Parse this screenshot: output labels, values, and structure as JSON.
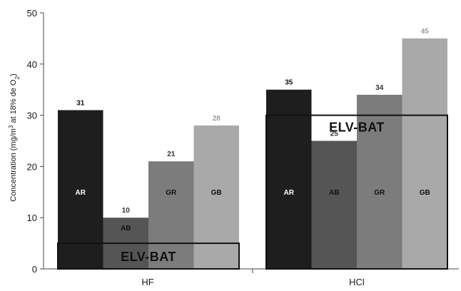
{
  "chart_data": {
    "type": "bar",
    "categories": [
      "HF",
      "HCl"
    ],
    "series": [
      {
        "name": "AR",
        "values": [
          31,
          35
        ],
        "color": "#1e1e1e",
        "value_label_color": "#111111",
        "inbar_label_color": "#ffffff"
      },
      {
        "name": "AB",
        "values": [
          10,
          25
        ],
        "color": "#555555",
        "value_label_color": "#333333",
        "inbar_label_color": "#111111"
      },
      {
        "name": "GR",
        "values": [
          21,
          34
        ],
        "color": "#7c7c7c",
        "value_label_color": "#333333",
        "inbar_label_color": "#111111"
      },
      {
        "name": "GB",
        "values": [
          28,
          45
        ],
        "color": "#a9a9a9",
        "value_label_color": "#9a9a9a",
        "inbar_label_color": "#111111"
      }
    ],
    "ylabel_parts": [
      "Concentration (mg/m",
      "3",
      " at 18% de O",
      "2",
      ")"
    ],
    "ylim": [
      0,
      50
    ],
    "yticks": [
      0,
      10,
      20,
      30,
      40,
      50
    ],
    "reference_lines": [
      {
        "category": "HF",
        "value": 5,
        "label": "ELV-BAT"
      },
      {
        "category": "HCl",
        "value": 30,
        "label": "ELV-BAT"
      }
    ],
    "grid": false,
    "legend": "none"
  }
}
